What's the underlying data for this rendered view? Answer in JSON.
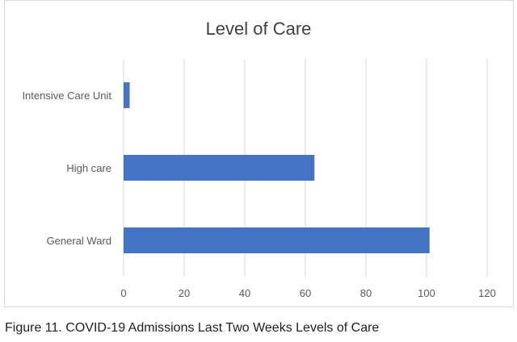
{
  "caption": "Figure 11. COVID-19 Admissions Last Two Weeks Levels of Care",
  "colors": {
    "bar": "#4472c4",
    "grid": "#d9d9d9",
    "text": "#595959",
    "title": "#404040"
  },
  "chart_data": {
    "type": "bar",
    "orientation": "horizontal",
    "title": "Level of Care",
    "xlabel": "",
    "ylabel": "",
    "categories": [
      "Intensive Care Unit",
      "High care",
      "General Ward"
    ],
    "values": [
      2,
      63,
      101
    ],
    "xlim": [
      0,
      120
    ],
    "x_ticks": [
      "0",
      "20",
      "40",
      "60",
      "80",
      "100",
      "120"
    ],
    "grid": "vertical",
    "legend": "none"
  }
}
